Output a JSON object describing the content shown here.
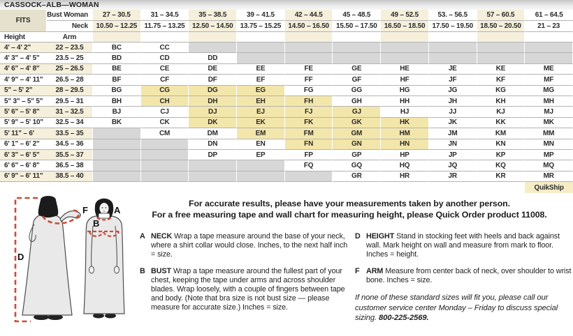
{
  "title": "CASSOCK–ALB—WOMAN",
  "colors": {
    "cream": "#f5efdb",
    "yellow": "#f3e6aa",
    "gray": "#d7d7d7",
    "fits": "#e6e1cc",
    "quik": "#f6ecc5",
    "rule": "#b3b3b3",
    "text": "#2b2b2b",
    "red": "#cd4a35"
  },
  "table": {
    "fits_label": "FITS",
    "bust_label": "Bust Woman",
    "neck_label": "Neck",
    "height_label": "Height",
    "arm_label": "Arm",
    "quikship_label": "QuikShip",
    "bust_ranges": [
      "27 – 30.5",
      "31 – 34.5",
      "35 – 38.5",
      "39 – 41.5",
      "42 – 44.5",
      "45 – 48.5",
      "49 – 52.5",
      "53. – 56.5",
      "57 – 60.5",
      "61 – 64.5"
    ],
    "neck_ranges": [
      "10.50 – 12.25",
      "11.75 – 13.25",
      "12.50 – 14.50",
      "13.75 – 15.25",
      "14.50 – 16.50",
      "15.50 – 17.50",
      "16.50 – 18.50",
      "17.50 – 19.50",
      "18.50 – 20.50",
      "21 – 23"
    ],
    "rows": [
      {
        "height": "4' – 4' 2\"",
        "arm": "22 – 23.5",
        "codes": [
          "BC",
          "CC",
          null,
          null,
          null,
          null,
          null,
          null,
          null,
          null
        ],
        "highlight": []
      },
      {
        "height": "4' 3\" – 4' 5\"",
        "arm": "23.5 – 25",
        "codes": [
          "BD",
          "CD",
          "DD",
          null,
          null,
          null,
          null,
          null,
          null,
          null
        ],
        "highlight": []
      },
      {
        "height": "4' 6\" – 4' 8\"",
        "arm": "25 – 26.5",
        "codes": [
          "BE",
          "CE",
          "DE",
          "EE",
          "FE",
          "GE",
          "HE",
          "JE",
          "KE",
          "ME"
        ],
        "highlight": []
      },
      {
        "height": "4' 9\" – 4' 11\"",
        "arm": "26.5 – 28",
        "codes": [
          "BF",
          "CF",
          "DF",
          "EF",
          "FF",
          "GF",
          "HF",
          "JF",
          "KF",
          "MF"
        ],
        "highlight": []
      },
      {
        "height": "5\" – 5' 2\"",
        "arm": "28 – 29.5",
        "codes": [
          "BG",
          "CG",
          "DG",
          "EG",
          "FG",
          "GG",
          "HG",
          "JG",
          "KG",
          "MG"
        ],
        "highlight": [
          1,
          2,
          3
        ]
      },
      {
        "height": "5\" 3\" – 5\" 5\"",
        "arm": "29.5 – 31",
        "codes": [
          "BH",
          "CH",
          "DH",
          "EH",
          "FH",
          "GH",
          "HH",
          "JH",
          "KH",
          "MH"
        ],
        "highlight": [
          1,
          2,
          3,
          4
        ]
      },
      {
        "height": "5' 6\" – 5' 8\"",
        "arm": "31 – 32.5",
        "codes": [
          "BJ",
          "CJ",
          "DJ",
          "EJ",
          "FJ",
          "GJ",
          "HJ",
          "JJ",
          "KJ",
          "MJ"
        ],
        "highlight": [
          2,
          3,
          4,
          5
        ]
      },
      {
        "height": "5' 9\" – 5' 10\"",
        "arm": "32.5 – 34",
        "codes": [
          "BK",
          "CK",
          "DK",
          "EK",
          "FK",
          "GK",
          "HK",
          "JK",
          "KK",
          "MK"
        ],
        "highlight": [
          2,
          3,
          4,
          5,
          6
        ]
      },
      {
        "height": "5' 11\" – 6'",
        "arm": "33.5 – 35",
        "codes": [
          null,
          "CM",
          "DM",
          "EM",
          "FM",
          "GM",
          "HM",
          "JM",
          "KM",
          "MM"
        ],
        "highlight": [
          3,
          4,
          5,
          6
        ]
      },
      {
        "height": "6' 1\" – 6' 2\"",
        "arm": "34.5 – 36",
        "codes": [
          null,
          null,
          "DN",
          "EN",
          "FN",
          "GN",
          "HN",
          "JN",
          "KN",
          "MN"
        ],
        "highlight": [
          4,
          5,
          6
        ]
      },
      {
        "height": "6' 3\" – 6' 5\"",
        "arm": "35.5 – 37",
        "codes": [
          null,
          null,
          "DP",
          "EP",
          "FP",
          "GP",
          "HP",
          "JP",
          "KP",
          "MP"
        ],
        "highlight": []
      },
      {
        "height": "6' 6\" – 6' 8\"",
        "arm": "36.5 – 38",
        "codes": [
          null,
          null,
          null,
          null,
          "FQ",
          "GQ",
          "HQ",
          "JQ",
          "KQ",
          "MQ"
        ],
        "highlight": []
      },
      {
        "height": "6' 9\" – 6' 11\"",
        "arm": "38.5 – 40",
        "codes": [
          null,
          null,
          null,
          null,
          null,
          "GR",
          "HR",
          "JR",
          "KR",
          "MR"
        ],
        "highlight": []
      }
    ]
  },
  "intro": {
    "line1": "For accurate results, please have your measurements taken by another person.",
    "line2": "For a free measuring tape and wall chart for measuring height, please Quick Order product 11008."
  },
  "instructions": [
    {
      "letter": "A",
      "term": "NECK",
      "text": " Wrap a tape measure around the base of your neck, where a shirt collar would close. Inches, to the next half inch = size."
    },
    {
      "letter": "B",
      "term": "BUST",
      "text": " Wrap a tape measure around the fullest part of your chest, keeping the tape under arms and across shoulder blades. Wrap loosely, with a couple of fingers between tape and body. (Note that bra size is not bust size — please measure for accurate size.) Inches = size."
    },
    {
      "letter": "D",
      "term": "HEIGHT",
      "text": " Stand in stocking feet with heels and back against wall. Mark height on wall and measure from mark to floor. Inches = height."
    },
    {
      "letter": "F",
      "term": "ARM",
      "text": " Measure from center back of neck, over shoulder to wrist bone. Inches = size."
    }
  ],
  "note": {
    "text": "If none of these standard sizes will fit you, please call our customer service center Monday – Friday to discuss special sizing. ",
    "phone": "800-225-2569."
  },
  "figure_labels": {
    "a": "A",
    "b": "B",
    "d": "D",
    "f": "F"
  }
}
